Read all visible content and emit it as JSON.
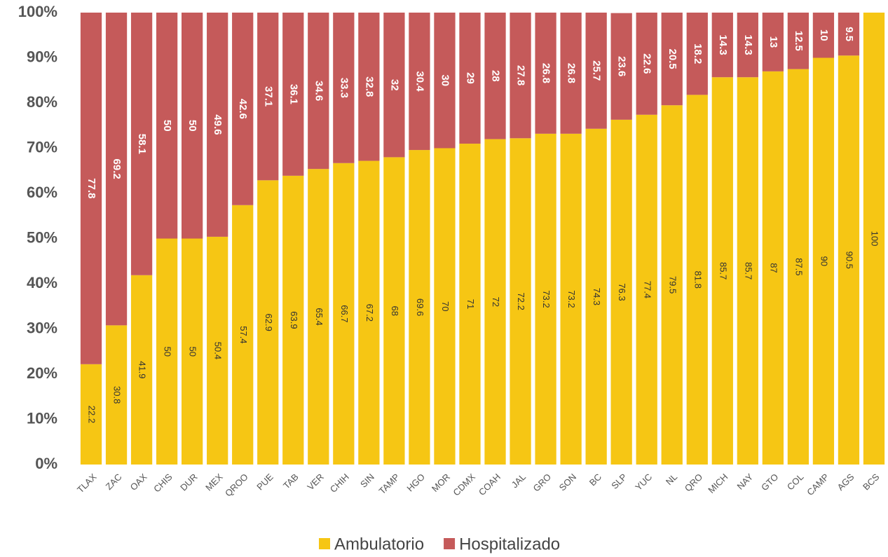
{
  "chart_data": {
    "type": "stacked_bar",
    "categories": [
      "TLAX",
      "ZAC",
      "OAX",
      "CHIS",
      "DUR",
      "MEX",
      "QROO",
      "PUE",
      "TAB",
      "VER",
      "CHIH",
      "SIN",
      "TAMP",
      "HGO",
      "MOR",
      "CDMX",
      "COAH",
      "JAL",
      "GRO",
      "SON",
      "BC",
      "SLP",
      "YUC",
      "NL",
      "QRO",
      "MICH",
      "NAY",
      "GTO",
      "COL",
      "CAMP",
      "AGS",
      "BCS"
    ],
    "series": [
      {
        "name": "Ambulatorio",
        "color": "#f6c614",
        "values": [
          22.2,
          30.8,
          41.9,
          50,
          50,
          50.4,
          57.4,
          62.9,
          63.9,
          65.4,
          66.7,
          67.2,
          68,
          69.6,
          70,
          71,
          72,
          72.2,
          73.2,
          73.2,
          74.3,
          76.3,
          77.4,
          79.5,
          81.8,
          85.7,
          85.7,
          87,
          87.5,
          90,
          90.5,
          100
        ]
      },
      {
        "name": "Hospitalizado",
        "color": "#c55a5a",
        "values": [
          77.8,
          69.2,
          58.1,
          50,
          50,
          49.6,
          42.6,
          37.1,
          36.1,
          34.6,
          33.3,
          32.8,
          32,
          30.4,
          30,
          29,
          28,
          27.8,
          26.8,
          26.8,
          25.7,
          23.6,
          22.6,
          20.5,
          18.2,
          14.3,
          14.3,
          13,
          12.5,
          10,
          9.5,
          null
        ]
      }
    ],
    "ylim": [
      0,
      100
    ],
    "yticks": [
      {
        "value": 0,
        "label": "0%"
      },
      {
        "value": 10,
        "label": "10%"
      },
      {
        "value": 20,
        "label": "20%"
      },
      {
        "value": 30,
        "label": "30%"
      },
      {
        "value": 40,
        "label": "40%"
      },
      {
        "value": 50,
        "label": "50%"
      },
      {
        "value": 60,
        "label": "60%"
      },
      {
        "value": 70,
        "label": "70%"
      },
      {
        "value": 80,
        "label": "80%"
      },
      {
        "value": 90,
        "label": "90%"
      },
      {
        "value": 100,
        "label": "100%"
      }
    ],
    "legend": "bottom"
  }
}
